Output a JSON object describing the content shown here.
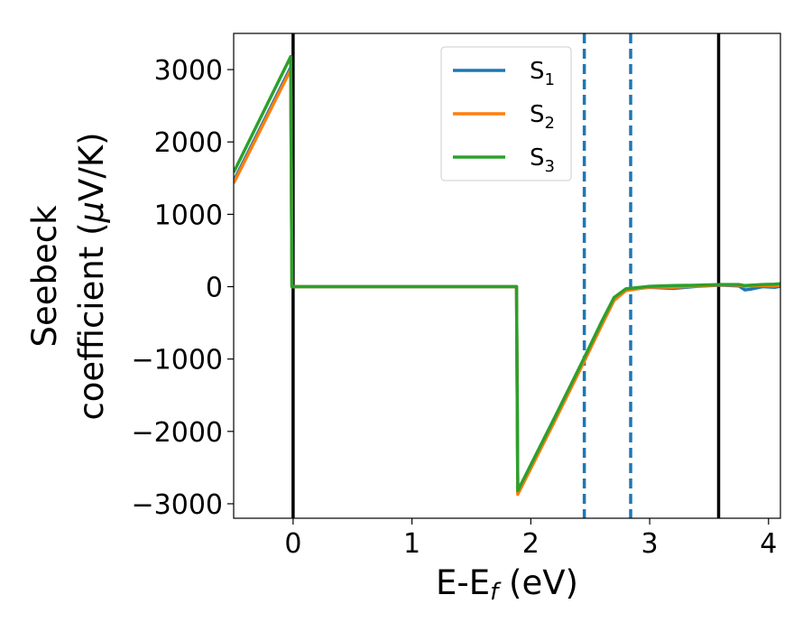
{
  "chart_data": {
    "type": "line",
    "xlabel": {
      "base": "E-E",
      "sub": "f",
      "unit": " (eV)"
    },
    "ylabel": {
      "line1": "Seebeck",
      "line2_prefix": "coefficient  (",
      "mu": "μ",
      "line2_suffix": "V/K)"
    },
    "xlim": [
      -0.5,
      4.1
    ],
    "ylim": [
      -3200,
      3500
    ],
    "x_ticks": [
      0,
      1,
      2,
      3,
      4
    ],
    "x_tick_labels": [
      "0",
      "1",
      "2",
      "3",
      "4"
    ],
    "y_ticks": [
      -3000,
      -2000,
      -1000,
      0,
      1000,
      2000,
      3000
    ],
    "y_tick_labels": [
      "−3000",
      "−2000",
      "−1000",
      "0",
      "1000",
      "2000",
      "3000"
    ],
    "grid": false,
    "legend_position": "upper-center",
    "vertical_lines": [
      {
        "x": 0.0,
        "style": "solid",
        "color": "#000000"
      },
      {
        "x": 3.58,
        "style": "solid",
        "color": "#000000"
      },
      {
        "x": 2.45,
        "style": "dashed",
        "color": "#1f77b4"
      },
      {
        "x": 2.84,
        "style": "dashed",
        "color": "#1f77b4"
      }
    ],
    "series": [
      {
        "name": "S",
        "sub": "1",
        "color": "#1f77b4",
        "points": [
          [
            -0.5,
            1460
          ],
          [
            -0.02,
            3030
          ],
          [
            -0.01,
            0
          ],
          [
            1.88,
            0
          ],
          [
            1.89,
            -2850
          ],
          [
            2.2,
            -1840
          ],
          [
            2.45,
            -1010
          ],
          [
            2.6,
            -500
          ],
          [
            2.7,
            -170
          ],
          [
            2.8,
            -40
          ],
          [
            3.0,
            -10
          ],
          [
            3.2,
            -25
          ],
          [
            3.4,
            5
          ],
          [
            3.6,
            20
          ],
          [
            3.75,
            10
          ],
          [
            3.8,
            -45
          ],
          [
            3.85,
            -35
          ],
          [
            3.95,
            0
          ],
          [
            4.05,
            -10
          ],
          [
            4.1,
            5
          ]
        ]
      },
      {
        "name": "S",
        "sub": "2",
        "color": "#ff7f0e",
        "points": [
          [
            -0.5,
            1430
          ],
          [
            -0.02,
            3000
          ],
          [
            -0.01,
            0
          ],
          [
            1.88,
            0
          ],
          [
            1.89,
            -2870
          ],
          [
            2.2,
            -1860
          ],
          [
            2.45,
            -1030
          ],
          [
            2.6,
            -520
          ],
          [
            2.7,
            -190
          ],
          [
            2.8,
            -55
          ],
          [
            3.0,
            -5
          ],
          [
            3.2,
            -10
          ],
          [
            3.4,
            10
          ],
          [
            3.6,
            25
          ],
          [
            3.75,
            20
          ],
          [
            3.8,
            5
          ],
          [
            3.95,
            15
          ],
          [
            4.05,
            10
          ],
          [
            4.1,
            20
          ]
        ]
      },
      {
        "name": "S",
        "sub": "3",
        "color": "#2ca02c",
        "points": [
          [
            -0.5,
            1580
          ],
          [
            -0.02,
            3180
          ],
          [
            -0.01,
            0
          ],
          [
            1.88,
            0
          ],
          [
            1.89,
            -2820
          ],
          [
            2.2,
            -1810
          ],
          [
            2.45,
            -980
          ],
          [
            2.6,
            -470
          ],
          [
            2.7,
            -150
          ],
          [
            2.8,
            -30
          ],
          [
            3.0,
            5
          ],
          [
            3.2,
            15
          ],
          [
            3.4,
            20
          ],
          [
            3.6,
            30
          ],
          [
            3.75,
            30
          ],
          [
            3.8,
            15
          ],
          [
            3.95,
            30
          ],
          [
            4.05,
            35
          ],
          [
            4.1,
            40
          ]
        ]
      }
    ]
  }
}
